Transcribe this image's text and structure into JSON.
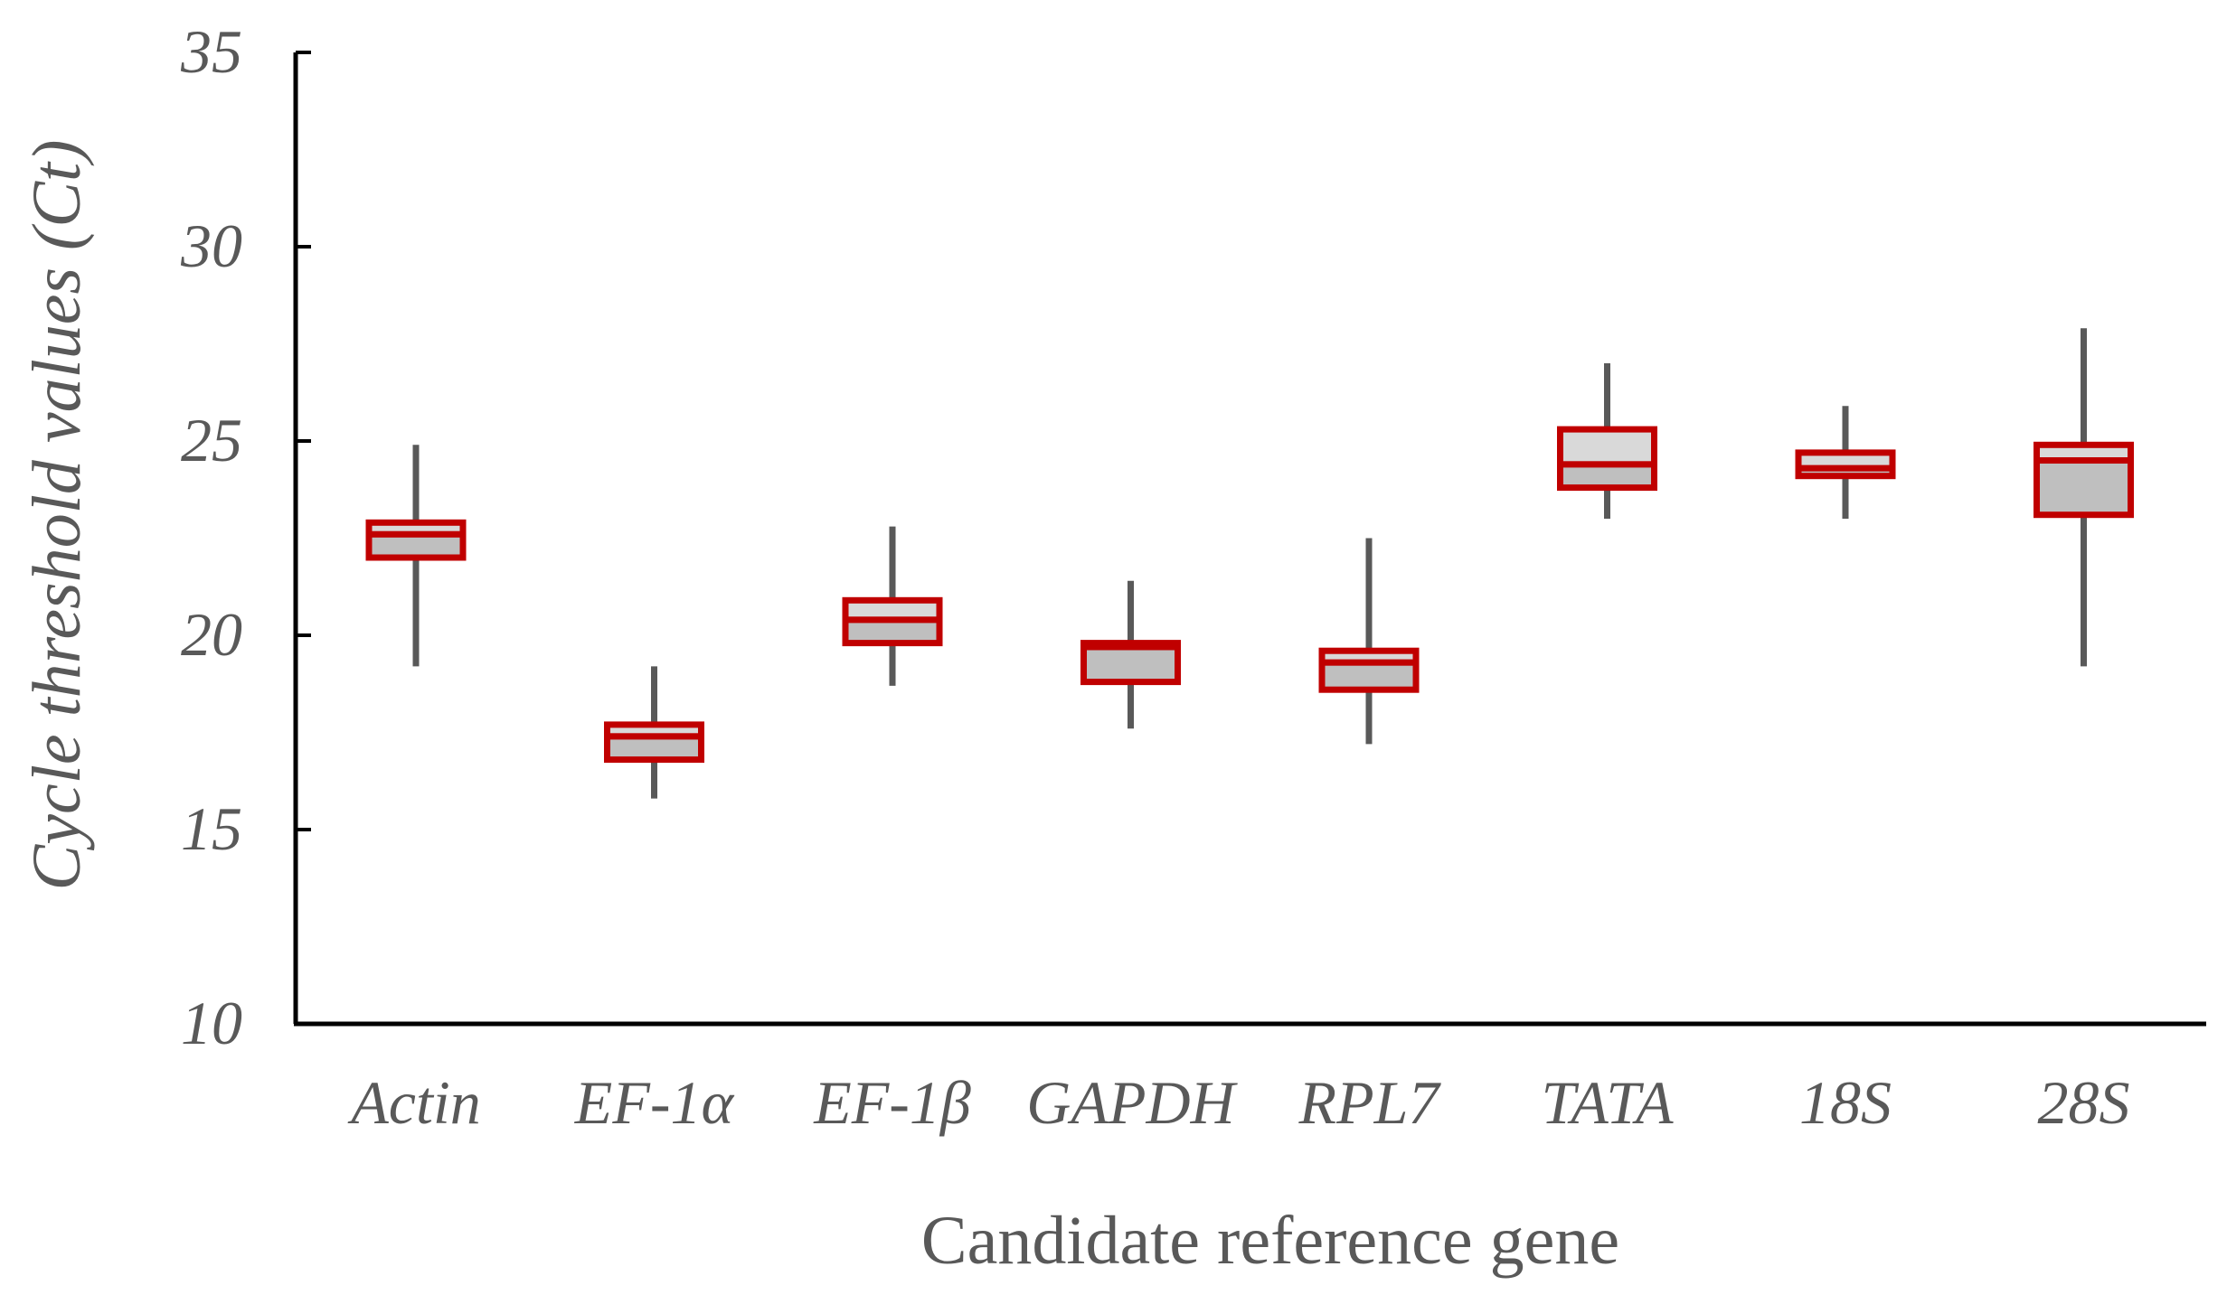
{
  "chart_data": {
    "type": "box",
    "xlabel": "Candidate reference gene",
    "ylabel": "Cycle threshold values (Ct)",
    "ylim": [
      10,
      35
    ],
    "yticks": [
      10,
      15,
      20,
      25,
      30,
      35
    ],
    "grid": false,
    "categories": [
      "Actin",
      "EF-1α",
      "EF-1β",
      "GAPDH",
      "RPL7",
      "TATA",
      "18S",
      "28S"
    ],
    "boxes": [
      {
        "min": 19.2,
        "q1": 22.0,
        "median": 22.6,
        "q3": 22.9,
        "max": 24.9
      },
      {
        "min": 15.8,
        "q1": 16.8,
        "median": 17.4,
        "q3": 17.7,
        "max": 19.2
      },
      {
        "min": 18.7,
        "q1": 19.8,
        "median": 20.4,
        "q3": 20.9,
        "max": 22.8
      },
      {
        "min": 17.6,
        "q1": 18.8,
        "median": 19.7,
        "q3": 19.8,
        "max": 21.4
      },
      {
        "min": 17.2,
        "q1": 18.6,
        "median": 19.3,
        "q3": 19.6,
        "max": 22.5
      },
      {
        "min": 23.0,
        "q1": 23.8,
        "median": 24.4,
        "q3": 25.3,
        "max": 27.0
      },
      {
        "min": 23.0,
        "q1": 24.1,
        "median": 24.3,
        "q3": 24.7,
        "max": 25.9
      },
      {
        "min": 19.2,
        "q1": 23.1,
        "median": 24.5,
        "q3": 24.9,
        "max": 27.9
      }
    ],
    "colors": {
      "box_edge": "#c00000",
      "lower_box_fill": "#bfbfbf",
      "upper_box_fill": "#d9d9d9",
      "whisker": "#595959",
      "axis": "#000000"
    }
  }
}
